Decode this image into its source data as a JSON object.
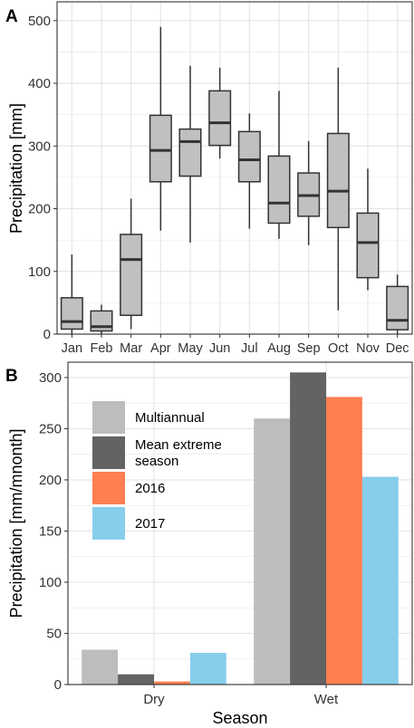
{
  "colors": {
    "panel_border": "#333333",
    "grid": "#e6e6e6",
    "box_fill": "#c0c0c0",
    "box_stroke": "#333333",
    "multiannual": "#bdbdbd",
    "mean_extreme": "#636363",
    "y2016": "#ff7f50",
    "y2017": "#87ceeb"
  },
  "chart_data": [
    {
      "panel_label": "A",
      "type": "boxplot",
      "title": "",
      "xlabel": "",
      "ylabel": "Precipitation [mm]",
      "ylim": [
        0,
        530
      ],
      "yticks": [
        0,
        100,
        200,
        300,
        400,
        500
      ],
      "grid": true,
      "categories": [
        "Jan",
        "Feb",
        "Mar",
        "Apr",
        "May",
        "Jun",
        "Jul",
        "Aug",
        "Sep",
        "Oct",
        "Nov",
        "Dec"
      ],
      "boxes": [
        {
          "min": 0,
          "q1": 8,
          "median": 20,
          "q3": 58,
          "max": 127
        },
        {
          "min": 0,
          "q1": 5,
          "median": 12,
          "q3": 37,
          "max": 47
        },
        {
          "min": 8,
          "q1": 30,
          "median": 119,
          "q3": 159,
          "max": 216
        },
        {
          "min": 165,
          "q1": 243,
          "median": 293,
          "q3": 349,
          "max": 490
        },
        {
          "min": 146,
          "q1": 252,
          "median": 307,
          "q3": 327,
          "max": 428
        },
        {
          "min": 280,
          "q1": 301,
          "median": 337,
          "q3": 388,
          "max": 425
        },
        {
          "min": 168,
          "q1": 243,
          "median": 278,
          "q3": 323,
          "max": 352
        },
        {
          "min": 152,
          "q1": 177,
          "median": 209,
          "q3": 284,
          "max": 388
        },
        {
          "min": 142,
          "q1": 188,
          "median": 221,
          "q3": 257,
          "max": 308
        },
        {
          "min": 38,
          "q1": 170,
          "median": 228,
          "q3": 320,
          "max": 425
        },
        {
          "min": 70,
          "q1": 90,
          "median": 146,
          "q3": 193,
          "max": 264
        },
        {
          "min": 0,
          "q1": 7,
          "median": 22,
          "q3": 76,
          "max": 95
        }
      ]
    },
    {
      "panel_label": "B",
      "type": "bar",
      "title": "",
      "xlabel": "Season",
      "ylabel": "Precipitation [mm/mnonth]",
      "ylim": [
        0,
        315
      ],
      "yticks": [
        0,
        50,
        100,
        150,
        200,
        250,
        300
      ],
      "grid": true,
      "legend_placement": "top-left",
      "categories": [
        "Dry",
        "Wet"
      ],
      "series": [
        {
          "name": "Multiannual",
          "color_key": "multiannual",
          "values": [
            34,
            260
          ]
        },
        {
          "name": "Mean extreme season",
          "legend_lines": [
            "Mean extreme",
            "season"
          ],
          "color_key": "mean_extreme",
          "values": [
            10,
            305
          ]
        },
        {
          "name": "2016",
          "color_key": "y2016",
          "values": [
            3,
            281
          ]
        },
        {
          "name": "2017",
          "color_key": "y2017",
          "values": [
            31,
            203
          ]
        }
      ]
    }
  ]
}
